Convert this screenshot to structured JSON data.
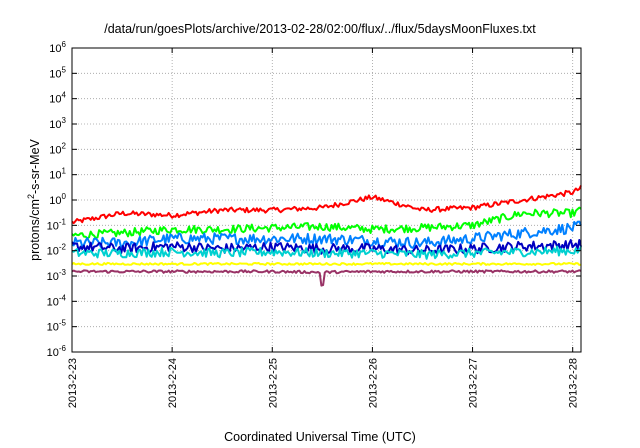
{
  "chart_data": {
    "type": "line",
    "title": "/data/run/goesPlots/archive/2013-02-28/02:00/flux/../flux/5daysMoonFluxes.txt",
    "xlabel": "Coordinated Universal Time (UTC)",
    "ylabel_prefix": "protons/cm",
    "ylabel_sup": "2",
    "ylabel_suffix": "-s-sr-MeV",
    "y_scale": "log",
    "ylim": [
      1e-06,
      1000000.0
    ],
    "y_ticks": [
      {
        "base": "10",
        "exp": "6"
      },
      {
        "base": "10",
        "exp": "5"
      },
      {
        "base": "10",
        "exp": "4"
      },
      {
        "base": "10",
        "exp": "3"
      },
      {
        "base": "10",
        "exp": "2"
      },
      {
        "base": "10",
        "exp": "1"
      },
      {
        "base": "10",
        "exp": "0"
      },
      {
        "base": "10",
        "exp": "-1"
      },
      {
        "base": "10",
        "exp": "-2"
      },
      {
        "base": "10",
        "exp": "-3"
      },
      {
        "base": "10",
        "exp": "-4"
      },
      {
        "base": "10",
        "exp": "-5"
      },
      {
        "base": "10",
        "exp": "-6"
      }
    ],
    "x_tick_labels": [
      "2013-2-23",
      "2013-2-24",
      "2013-2-25",
      "2013-2-26",
      "2013-2-27",
      "2013-2-28"
    ],
    "xlim": [
      "2013-02-23 00:00",
      "2013-02-28 02:00"
    ],
    "grid": true,
    "series_colors": [
      "#ff0000",
      "#00ff00",
      "#0080ff",
      "#0000c0",
      "#00d0d0",
      "#ffff00",
      "#993366"
    ],
    "series": [
      {
        "x": [
          0,
          0.5,
          1,
          1.5,
          2,
          2.5,
          3,
          3.5,
          4,
          4.5,
          5,
          5.083
        ],
        "values": [
          0.13,
          0.3,
          0.25,
          0.4,
          0.4,
          0.5,
          1.3,
          0.4,
          0.5,
          1.0,
          2.0,
          3.0
        ]
      },
      {
        "x": [
          0,
          0.5,
          1,
          1.5,
          2,
          2.5,
          3,
          3.5,
          4,
          4.5,
          5,
          5.083
        ],
        "values": [
          0.04,
          0.05,
          0.07,
          0.07,
          0.08,
          0.09,
          0.07,
          0.08,
          0.1,
          0.3,
          0.3,
          0.4
        ]
      },
      {
        "x": [
          0,
          0.5,
          1,
          1.5,
          2,
          2.5,
          3,
          3.5,
          4,
          4.5,
          5,
          5.083
        ],
        "values": [
          0.02,
          0.02,
          0.03,
          0.03,
          0.03,
          0.03,
          0.025,
          0.02,
          0.03,
          0.05,
          0.08,
          0.09
        ]
      },
      {
        "x": [
          0,
          0.5,
          1,
          1.5,
          2,
          2.5,
          3,
          3.5,
          4,
          4.5,
          5,
          5.083
        ],
        "values": [
          0.015,
          0.012,
          0.015,
          0.012,
          0.014,
          0.012,
          0.012,
          0.01,
          0.012,
          0.015,
          0.017,
          0.018
        ]
      },
      {
        "x": [
          0,
          0.5,
          1,
          1.5,
          2,
          2.5,
          3,
          3.5,
          4,
          4.5,
          5,
          5.083
        ],
        "values": [
          0.008,
          0.008,
          0.009,
          0.008,
          0.009,
          0.008,
          0.008,
          0.007,
          0.008,
          0.009,
          0.01,
          0.01
        ]
      },
      {
        "x": [
          0,
          0.5,
          1,
          1.5,
          2,
          2.5,
          3,
          3.5,
          4,
          4.5,
          5,
          5.083
        ],
        "values": [
          0.003,
          0.003,
          0.003,
          0.003,
          0.003,
          0.003,
          0.003,
          0.003,
          0.003,
          0.003,
          0.003,
          0.003
        ]
      },
      {
        "x": [
          0,
          0.5,
          1,
          1.5,
          2,
          2.5,
          3,
          3.5,
          4,
          4.5,
          5,
          5.083
        ],
        "values": [
          0.0015,
          0.0015,
          0.0015,
          0.0015,
          0.0015,
          0.0014,
          0.0015,
          0.0015,
          0.0015,
          0.0015,
          0.0015,
          0.0015
        ]
      }
    ]
  }
}
